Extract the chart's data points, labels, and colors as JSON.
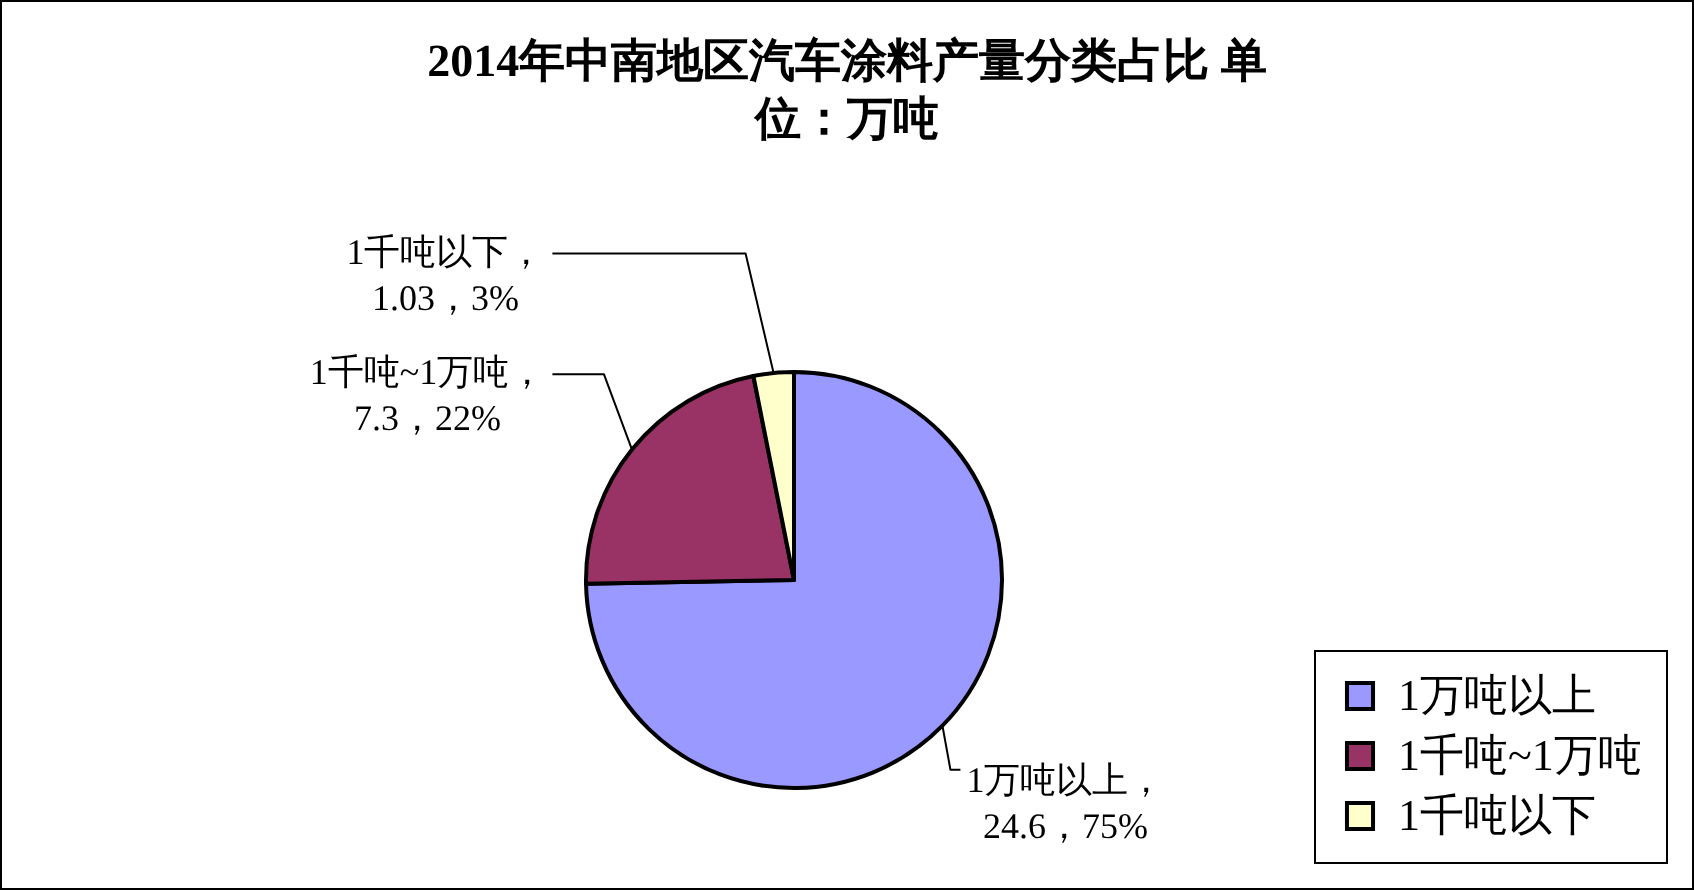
{
  "chart_data": {
    "type": "pie",
    "title": "2014年中南地区汽车涂料产量分类占比 单位：万吨",
    "categories": [
      "1万吨以上",
      "1千吨~1万吨",
      "1千吨以下"
    ],
    "values": [
      24.6,
      7.3,
      1.03
    ],
    "colors": [
      "#9999ff",
      "#993366",
      "#ffffcc"
    ],
    "value_labels": [
      "1万吨以上，24.6，75%",
      "1千吨~1万吨，7.3，22%",
      "1千吨以下，1.03，3%"
    ],
    "legend": "bottom right"
  }
}
